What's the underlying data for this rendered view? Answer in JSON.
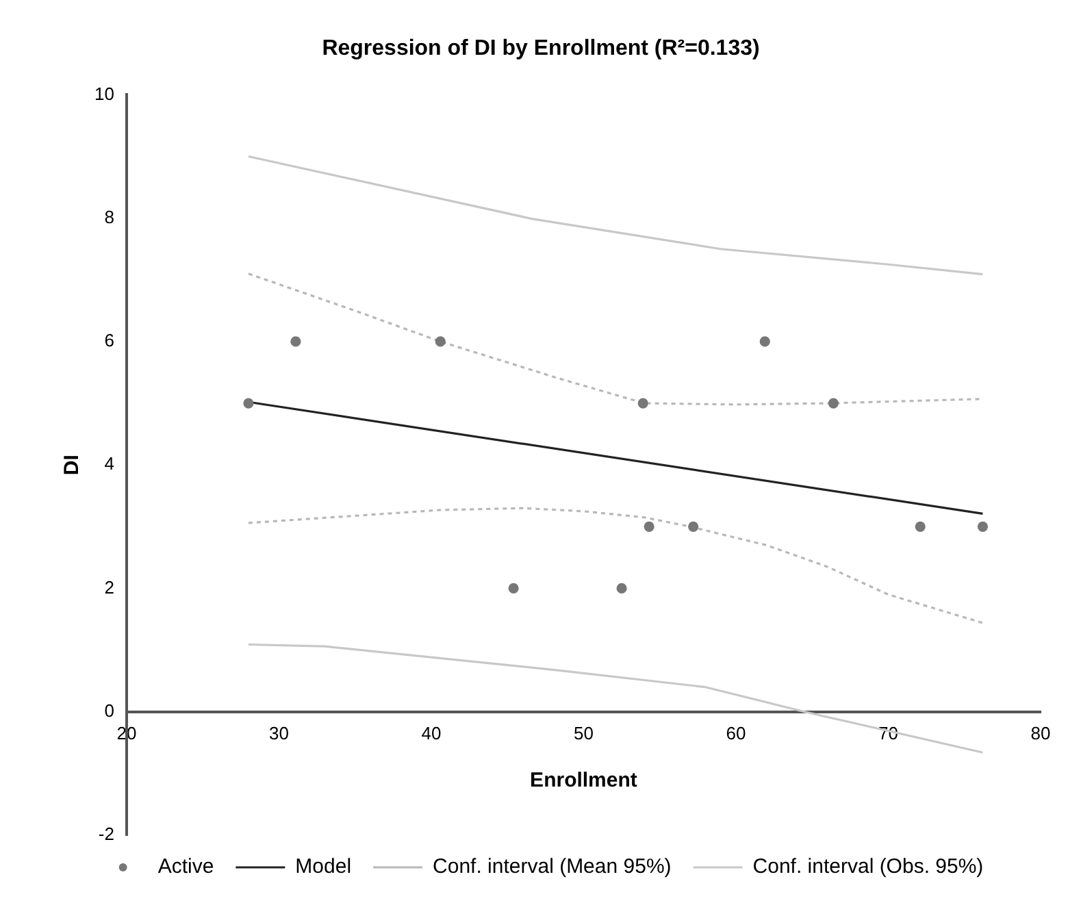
{
  "chart_data": {
    "type": "scatter",
    "title": "Regression of DI by Enrollment (R²=0.133)",
    "xlabel": "Enrollment",
    "ylabel": "DI",
    "xlim": [
      20,
      80
    ],
    "xticks": [
      20,
      30,
      40,
      50,
      60,
      70,
      80
    ],
    "ylim": [
      -2,
      10
    ],
    "yticks": [
      -2,
      0,
      2,
      4,
      6,
      8,
      10
    ],
    "grid": false,
    "legend": "bottom",
    "series": [
      {
        "name": "Active",
        "type": "scatter",
        "marker": "circle",
        "color": "#777777",
        "x": [
          28,
          31.1,
          40.6,
          45.4,
          52.5,
          53.9,
          54.3,
          57.2,
          61.9,
          66.4,
          72.1,
          76.2
        ],
        "values": [
          5,
          6,
          6,
          2,
          2,
          5,
          3,
          3,
          6,
          5,
          3,
          3
        ]
      },
      {
        "name": "Model",
        "type": "line",
        "marker": "none",
        "line_style": "solid",
        "color": "#222222",
        "x": [
          28,
          76.2
        ],
        "values": [
          5.02,
          3.21
        ]
      },
      {
        "name": "Conf. interval (Mean 95%)",
        "type": "line",
        "marker": "none",
        "line_style": "dotted",
        "color": "#b8b8b8",
        "x": [
          28,
          35,
          40.6,
          48.4,
          54,
          60,
          66,
          76.2
        ],
        "values": [
          7.1,
          6.5,
          6.0,
          5.4,
          5.0,
          4.98,
          5.0,
          5.07
        ]
      },
      {
        "name": null,
        "type": "line",
        "marker": "none",
        "line_style": "dotted",
        "color": "#b8b8b8",
        "x": [
          28,
          40.6,
          46,
          50,
          54,
          57,
          62,
          66,
          70,
          76.2
        ],
        "values": [
          3.06,
          3.27,
          3.3,
          3.25,
          3.15,
          3.0,
          2.7,
          2.35,
          1.9,
          1.44
        ]
      },
      {
        "name": "Conf. interval (Obs. 95%)",
        "type": "line",
        "marker": "none",
        "line_style": "solid",
        "color": "#c8c8c8",
        "x": [
          28,
          46.6,
          59,
          70,
          76.2
        ],
        "values": [
          9.0,
          7.99,
          7.5,
          7.25,
          7.09
        ]
      },
      {
        "name": null,
        "type": "line",
        "marker": "none",
        "line_style": "solid",
        "color": "#c8c8c8",
        "x": [
          28,
          33,
          48.4,
          58,
          64.5,
          76.2
        ],
        "values": [
          1.09,
          1.06,
          0.67,
          0.4,
          0,
          -0.66
        ]
      }
    ]
  }
}
